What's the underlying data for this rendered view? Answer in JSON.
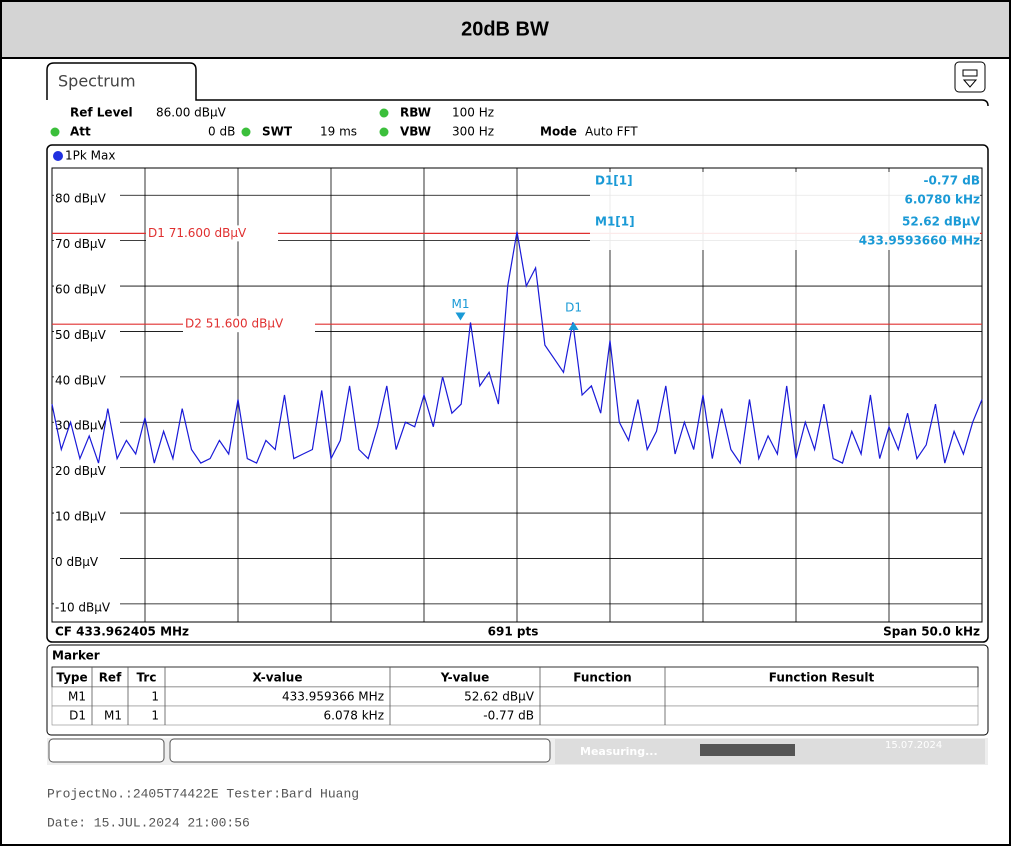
{
  "header": {
    "title": "20dB BW"
  },
  "screen": {
    "tab": "Spectrum",
    "ref_level_label": "Ref Level",
    "ref_level": "86.00 dBµV",
    "att_label": "Att",
    "att": "0 dB",
    "swt_label": "SWT",
    "swt": "19 ms",
    "rbw_label": "RBW",
    "rbw": "100 Hz",
    "vbw_label": "VBW",
    "vbw": "300 Hz",
    "mode_label": "Mode",
    "mode": "Auto FFT",
    "trace_label": "1Pk Max"
  },
  "chart_data": {
    "type": "line",
    "color": "#1a1ad8",
    "values": [
      34,
      24,
      30,
      22,
      27,
      21,
      33,
      22,
      26,
      23,
      31,
      21,
      28,
      22,
      33,
      24,
      21,
      22,
      26,
      23,
      35,
      22,
      21,
      26,
      24,
      36,
      22,
      23,
      24,
      37,
      22,
      26,
      38,
      24,
      22,
      29,
      38,
      24,
      30,
      29,
      36,
      29,
      40,
      32,
      34,
      52,
      38,
      41,
      34,
      60,
      72,
      60,
      64,
      47,
      44,
      41,
      52,
      36,
      38,
      32,
      48,
      30,
      26,
      35,
      24,
      28,
      38,
      23,
      30,
      24,
      36,
      22,
      33,
      24,
      21,
      35,
      22,
      27,
      23,
      38,
      22,
      30,
      24,
      34,
      22,
      21,
      28,
      23,
      36,
      22,
      29,
      24,
      32,
      22,
      25,
      34,
      21,
      28,
      23,
      30,
      35
    ],
    "xlim": [
      433.937405,
      433.987405
    ],
    "ylim": [
      -14,
      86
    ],
    "yticks": [
      {
        "value": 80,
        "label": "80 dBµV"
      },
      {
        "value": 70,
        "label": "70 dBµV"
      },
      {
        "value": 60,
        "label": "60 dBµV"
      },
      {
        "value": 50,
        "label": "50 dBµV"
      },
      {
        "value": 40,
        "label": "40 dBµV"
      },
      {
        "value": 30,
        "label": "30 dBµV"
      },
      {
        "value": 20,
        "label": "20 dBµV"
      },
      {
        "value": 10,
        "label": "10 dBµV"
      },
      {
        "value": 0,
        "label": "0 dBµV"
      },
      {
        "value": -10,
        "label": "-10 dBµV"
      }
    ],
    "grid": true,
    "lines": [
      {
        "label": "D1 71.600 dBµV",
        "value": 71.6,
        "color": "#e03030"
      },
      {
        "label": "D2 51.600 dBµV",
        "value": 51.6,
        "color": "#e03030"
      }
    ],
    "markers": [
      {
        "name": "M1",
        "x": 433.959366,
        "value": 52.62
      },
      {
        "name": "D1",
        "x": 433.965444,
        "value": 51.85
      }
    ],
    "readout": [
      {
        "name": "D1[1]",
        "lines": [
          "-0.77 dB",
          "6.0780 kHz"
        ]
      },
      {
        "name": "M1[1]",
        "lines": [
          "52.62 dBµV",
          "433.9593660 MHz"
        ]
      }
    ]
  },
  "plot_footer": {
    "cf": "CF 433.962405 MHz",
    "pts": "691 pts",
    "span": "Span 50.0 kHz"
  },
  "marker_table": {
    "title": "Marker",
    "headers": [
      "Type",
      "Ref",
      "Trc",
      "X-value",
      "Y-value",
      "Function",
      "Function Result"
    ],
    "rows": [
      {
        "type": "M1",
        "trc": "1",
        "x": "433.959366 MHz",
        "y": "52.62 dBµV"
      },
      {
        "type": "D1",
        "ref": "M1",
        "trc": "1",
        "x": "6.078 kHz",
        "y": "-0.77 dB"
      }
    ]
  },
  "status": {
    "state": "Measuring...",
    "date": "15.07.2024"
  },
  "footer": [
    "ProjectNo.:2405T74422E Tester:Bard Huang",
    "Date: 15.JUL.2024  21:00:56"
  ]
}
